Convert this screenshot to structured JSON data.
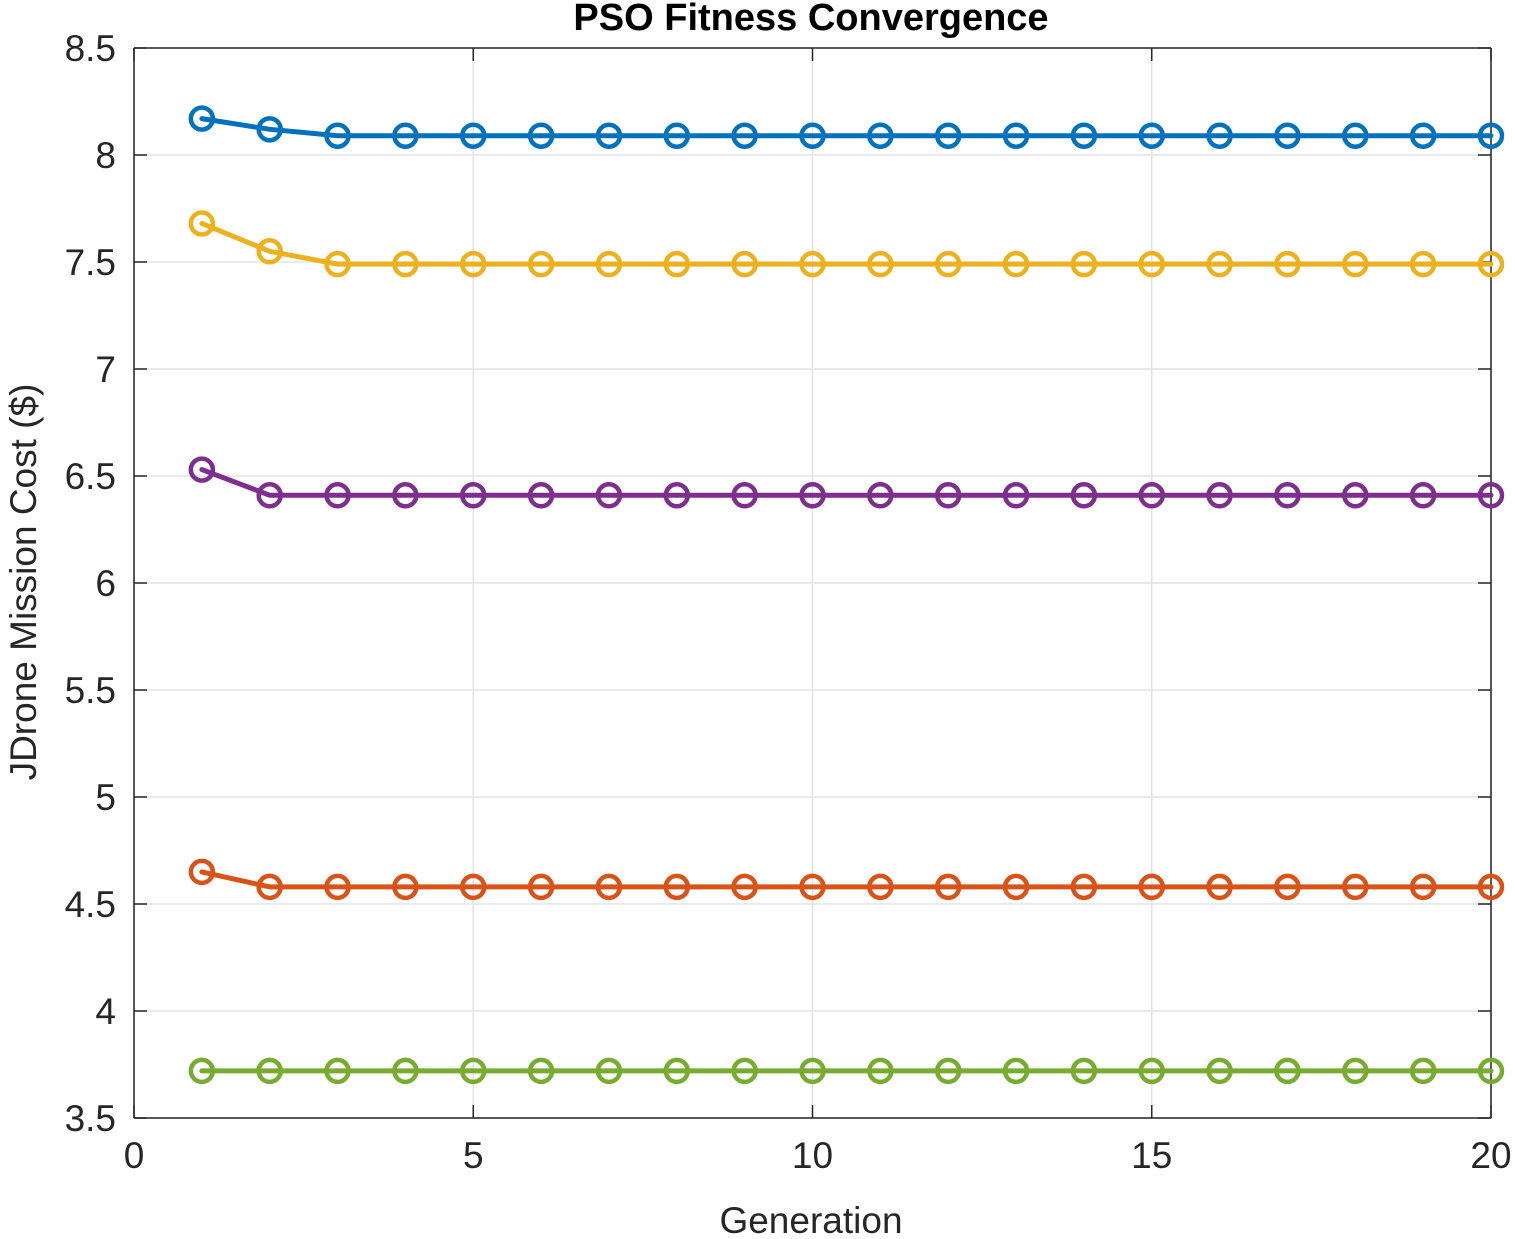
{
  "chart_data": {
    "type": "line",
    "title": "PSO Fitness Convergence",
    "xlabel": "Generation",
    "ylabel": "JDrone Mission Cost ($)",
    "xlim": [
      0,
      20
    ],
    "ylim": [
      3.5,
      8.5
    ],
    "x_ticks": [
      "0",
      "5",
      "10",
      "15",
      "20"
    ],
    "y_ticks": [
      "3.5",
      "4",
      "4.5",
      "5",
      "5.5",
      "6",
      "6.5",
      "7",
      "7.5",
      "8",
      "8.5"
    ],
    "grid": true,
    "marker": "circle",
    "x": [
      1,
      2,
      3,
      4,
      5,
      6,
      7,
      8,
      9,
      10,
      11,
      12,
      13,
      14,
      15,
      16,
      17,
      18,
      19,
      20
    ],
    "series": [
      {
        "color": "#0072BD",
        "values": [
          8.17,
          8.12,
          8.09,
          8.09,
          8.09,
          8.09,
          8.09,
          8.09,
          8.09,
          8.09,
          8.09,
          8.09,
          8.09,
          8.09,
          8.09,
          8.09,
          8.09,
          8.09,
          8.09,
          8.09
        ]
      },
      {
        "color": "#D95319",
        "values": [
          4.65,
          4.58,
          4.58,
          4.58,
          4.58,
          4.58,
          4.58,
          4.58,
          4.58,
          4.58,
          4.58,
          4.58,
          4.58,
          4.58,
          4.58,
          4.58,
          4.58,
          4.58,
          4.58,
          4.58
        ]
      },
      {
        "color": "#EDB120",
        "values": [
          7.68,
          7.55,
          7.49,
          7.49,
          7.49,
          7.49,
          7.49,
          7.49,
          7.49,
          7.49,
          7.49,
          7.49,
          7.49,
          7.49,
          7.49,
          7.49,
          7.49,
          7.49,
          7.49,
          7.49
        ]
      },
      {
        "color": "#7E2F8E",
        "values": [
          6.53,
          6.41,
          6.41,
          6.41,
          6.41,
          6.41,
          6.41,
          6.41,
          6.41,
          6.41,
          6.41,
          6.41,
          6.41,
          6.41,
          6.41,
          6.41,
          6.41,
          6.41,
          6.41,
          6.41
        ]
      },
      {
        "color": "#77AC30",
        "values": [
          3.72,
          3.72,
          3.72,
          3.72,
          3.72,
          3.72,
          3.72,
          3.72,
          3.72,
          3.72,
          3.72,
          3.72,
          3.72,
          3.72,
          3.72,
          3.72,
          3.72,
          3.72,
          3.72,
          3.72
        ]
      }
    ]
  }
}
